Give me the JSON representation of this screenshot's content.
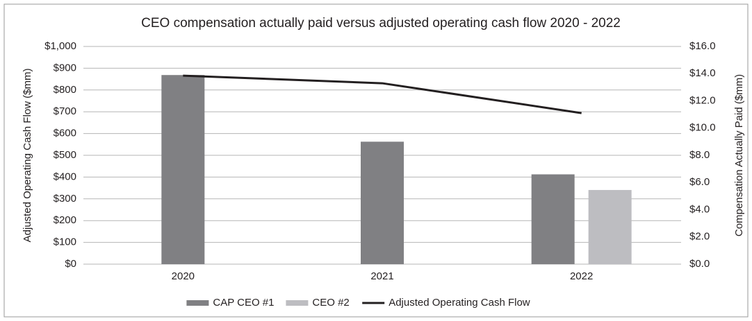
{
  "chart_data": {
    "type": "bar",
    "title": "CEO compensation actually paid versus adjusted operating cash flow 2020 - 2022",
    "ylabel": "Adjusted Operating Cash Flow ($mm)",
    "y2label": "Compensation Actually Paid ($mm)",
    "categories": [
      "2020",
      "2021",
      "2022"
    ],
    "series": [
      {
        "name": "CAP CEO #1",
        "color": "#808083",
        "type": "bar",
        "axis": "y2",
        "values": [
          13.9,
          9.0,
          6.6
        ]
      },
      {
        "name": "CEO #2",
        "color": "#bdbdc1",
        "type": "bar",
        "axis": "y2",
        "values": [
          null,
          null,
          5.45
        ]
      },
      {
        "name": "Adjusted Operating Cash Flow",
        "color": "#231f20",
        "type": "line",
        "values": [
          866,
          831,
          694
        ]
      }
    ],
    "ylim": [
      0,
      1000
    ],
    "yticks": [
      {
        "value": 0,
        "label": "$0"
      },
      {
        "value": 100,
        "label": "$100"
      },
      {
        "value": 200,
        "label": "$200"
      },
      {
        "value": 300,
        "label": "$300"
      },
      {
        "value": 400,
        "label": "$400"
      },
      {
        "value": 500,
        "label": "$500"
      },
      {
        "value": 600,
        "label": "$600"
      },
      {
        "value": 700,
        "label": "$700"
      },
      {
        "value": 800,
        "label": "$800"
      },
      {
        "value": 900,
        "label": "$900"
      },
      {
        "value": 1000,
        "label": "$1,000"
      }
    ],
    "y2lim": [
      0,
      16
    ],
    "y2ticks": [
      {
        "value": 0,
        "label": "$0.0"
      },
      {
        "value": 2,
        "label": "$2.0"
      },
      {
        "value": 4,
        "label": "$4.0"
      },
      {
        "value": 6,
        "label": "$6.0"
      },
      {
        "value": 8,
        "label": "$8.0"
      },
      {
        "value": 10,
        "label": "$10.0"
      },
      {
        "value": 12,
        "label": "$12.0"
      },
      {
        "value": 14,
        "label": "$14.0"
      },
      {
        "value": 16,
        "label": "$16.0"
      }
    ],
    "grid": true,
    "legend": "bottom"
  }
}
